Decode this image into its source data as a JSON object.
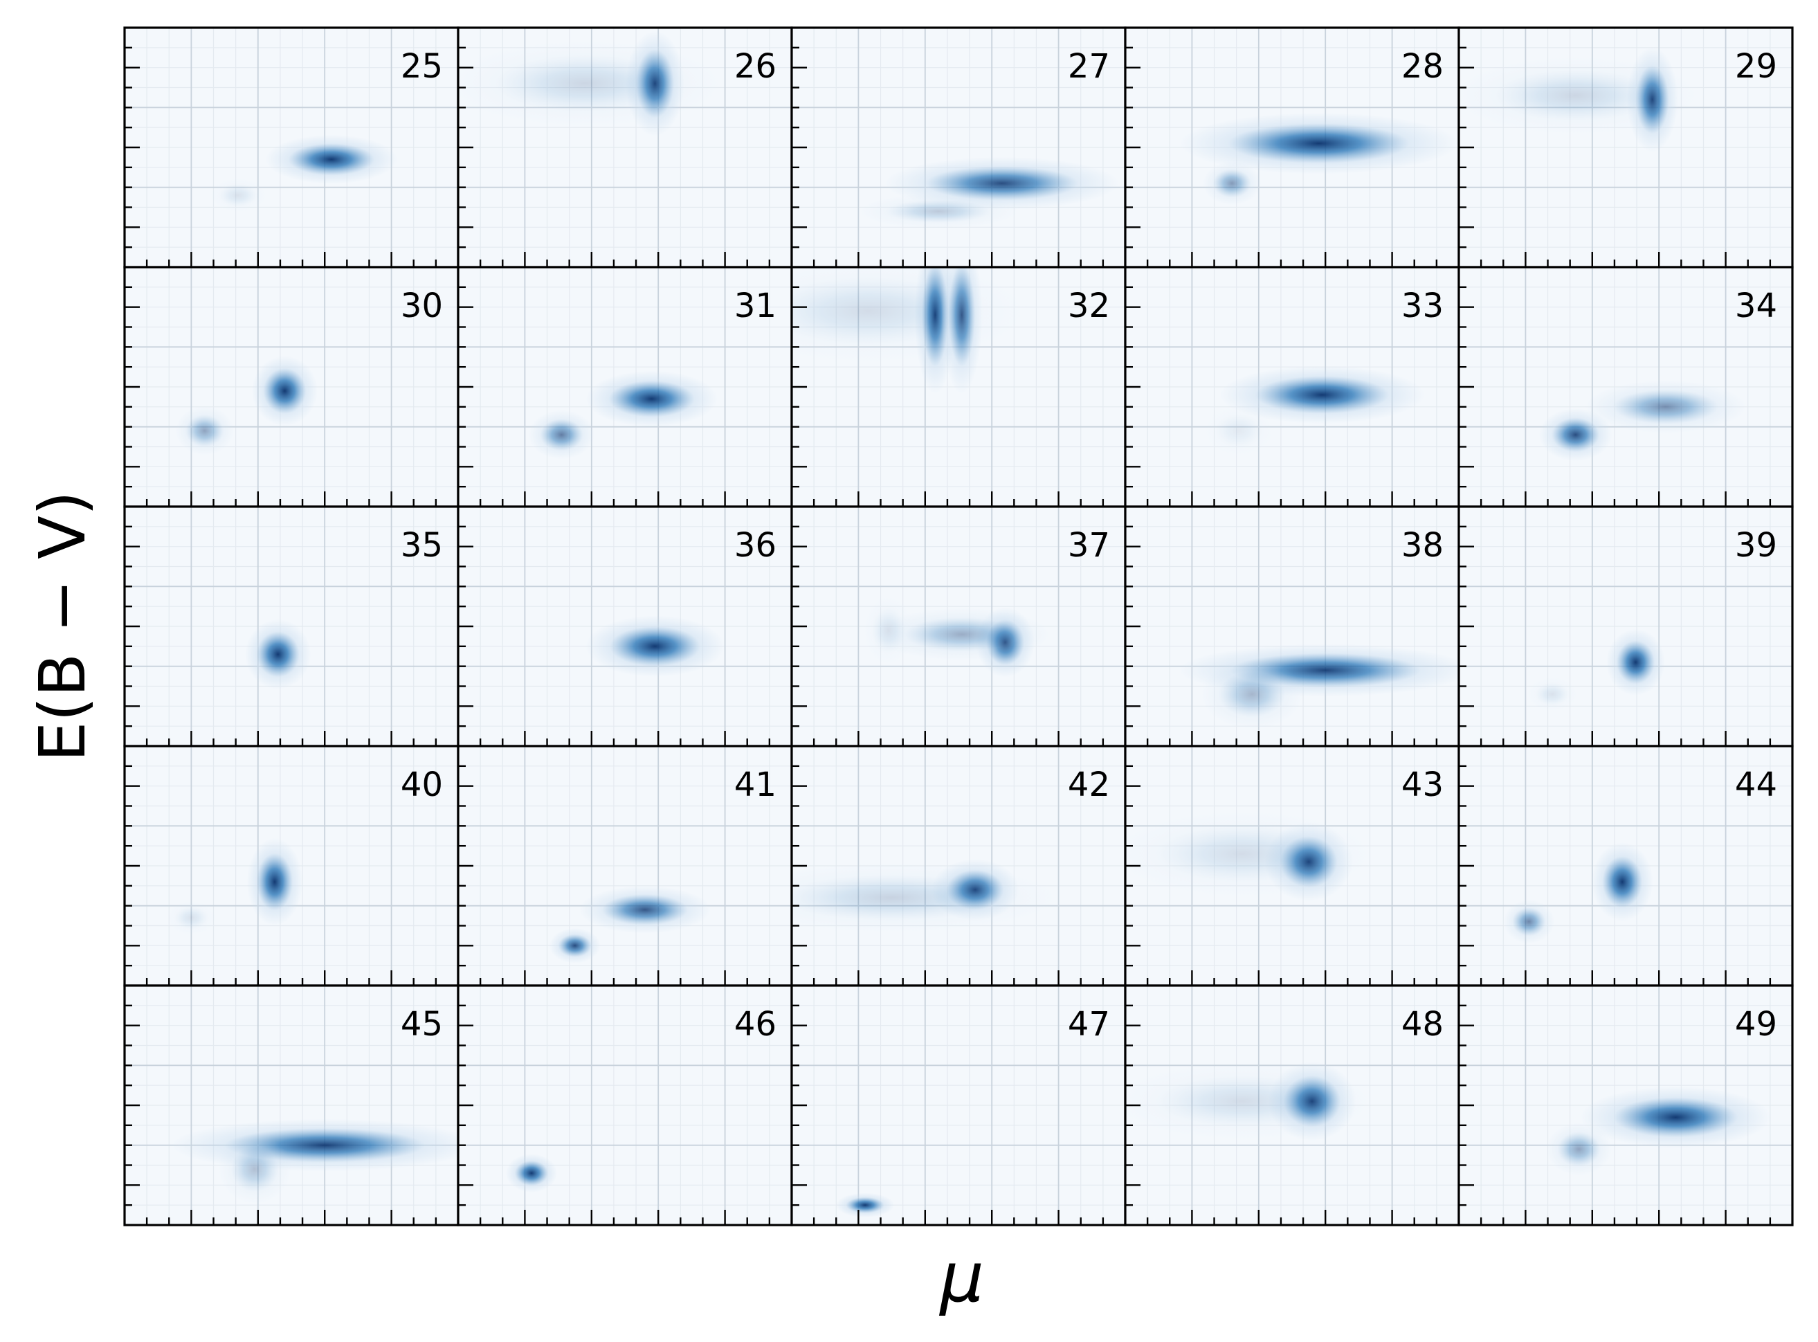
{
  "figure": {
    "xlabel": "μ",
    "ylabel": "E(B − V)",
    "colors": {
      "axis": "#000000",
      "grid": "#c8d2dc",
      "background": "#f4f8fc",
      "cmap_dark": "#08306b",
      "cmap_mid": "#2171b5",
      "cmap_light": "#c6dbef"
    }
  },
  "chart_data": {
    "type": "heatmap",
    "layout": {
      "rows": 5,
      "cols": 5
    },
    "xlabel": "μ",
    "ylabel": "E(B − V)",
    "grid": true,
    "colormap": "Blues",
    "tick_labels_shown": false,
    "panel_axes": {
      "x_range": [
        0,
        10
      ],
      "y_range": [
        0,
        6
      ]
    },
    "panels": [
      {
        "label": "25",
        "blobs": [
          {
            "x": 6.2,
            "y": 2.7,
            "sx": 0.9,
            "sy": 0.28,
            "w": 1
          },
          {
            "x": 3.4,
            "y": 1.8,
            "sx": 0.4,
            "sy": 0.2,
            "w": 0.12
          }
        ]
      },
      {
        "label": "26",
        "blobs": [
          {
            "x": 5.9,
            "y": 4.6,
            "sx": 0.4,
            "sy": 0.6,
            "w": 1
          },
          {
            "x": 3.8,
            "y": 4.6,
            "sx": 1.9,
            "sy": 0.5,
            "w": 0.18
          }
        ]
      },
      {
        "label": "27",
        "blobs": [
          {
            "x": 6.3,
            "y": 2.1,
            "sx": 1.6,
            "sy": 0.3,
            "w": 0.9
          },
          {
            "x": 4.4,
            "y": 1.4,
            "sx": 1.1,
            "sy": 0.2,
            "w": 0.25
          }
        ]
      },
      {
        "label": "28",
        "blobs": [
          {
            "x": 5.8,
            "y": 3.1,
            "sx": 1.9,
            "sy": 0.35,
            "w": 1
          },
          {
            "x": 3.2,
            "y": 2.1,
            "sx": 0.4,
            "sy": 0.25,
            "w": 0.5
          }
        ]
      },
      {
        "label": "29",
        "blobs": [
          {
            "x": 5.8,
            "y": 4.2,
            "sx": 0.35,
            "sy": 0.6,
            "w": 1
          },
          {
            "x": 3.5,
            "y": 4.3,
            "sx": 1.7,
            "sy": 0.45,
            "w": 0.18
          }
        ]
      },
      {
        "label": "30",
        "blobs": [
          {
            "x": 4.8,
            "y": 2.9,
            "sx": 0.45,
            "sy": 0.4,
            "w": 1
          },
          {
            "x": 2.4,
            "y": 1.9,
            "sx": 0.4,
            "sy": 0.28,
            "w": 0.45
          }
        ]
      },
      {
        "label": "31",
        "blobs": [
          {
            "x": 5.8,
            "y": 2.7,
            "sx": 0.9,
            "sy": 0.32,
            "w": 1
          },
          {
            "x": 3.1,
            "y": 1.8,
            "sx": 0.45,
            "sy": 0.28,
            "w": 0.65
          }
        ]
      },
      {
        "label": "32",
        "blobs": [
          {
            "x": 4.3,
            "y": 4.8,
            "sx": 0.28,
            "sy": 0.9,
            "w": 1
          },
          {
            "x": 5.1,
            "y": 4.8,
            "sx": 0.28,
            "sy": 0.9,
            "w": 0.9
          },
          {
            "x": 2.3,
            "y": 4.9,
            "sx": 2.2,
            "sy": 0.6,
            "w": 0.15
          }
        ]
      },
      {
        "label": "33",
        "blobs": [
          {
            "x": 5.9,
            "y": 2.8,
            "sx": 1.4,
            "sy": 0.33,
            "w": 1
          },
          {
            "x": 3.4,
            "y": 1.9,
            "sx": 0.5,
            "sy": 0.3,
            "w": 0.08
          }
        ]
      },
      {
        "label": "34",
        "blobs": [
          {
            "x": 6.2,
            "y": 2.5,
            "sx": 1.1,
            "sy": 0.3,
            "w": 0.55
          },
          {
            "x": 3.5,
            "y": 1.8,
            "sx": 0.5,
            "sy": 0.3,
            "w": 0.9
          }
        ]
      },
      {
        "label": "35",
        "blobs": [
          {
            "x": 4.6,
            "y": 2.3,
            "sx": 0.45,
            "sy": 0.4,
            "w": 1
          }
        ]
      },
      {
        "label": "36",
        "blobs": [
          {
            "x": 5.9,
            "y": 2.5,
            "sx": 0.95,
            "sy": 0.35,
            "w": 1
          }
        ]
      },
      {
        "label": "37",
        "blobs": [
          {
            "x": 6.4,
            "y": 2.6,
            "sx": 0.4,
            "sy": 0.4,
            "w": 1
          },
          {
            "x": 5.1,
            "y": 2.8,
            "sx": 1.2,
            "sy": 0.3,
            "w": 0.4
          },
          {
            "x": 2.9,
            "y": 2.9,
            "sx": 0.35,
            "sy": 0.4,
            "w": 0.12
          }
        ]
      },
      {
        "label": "38",
        "blobs": [
          {
            "x": 6.0,
            "y": 1.9,
            "sx": 2.0,
            "sy": 0.3,
            "w": 0.95
          },
          {
            "x": 3.8,
            "y": 1.3,
            "sx": 0.7,
            "sy": 0.4,
            "w": 0.35
          }
        ]
      },
      {
        "label": "39",
        "blobs": [
          {
            "x": 5.3,
            "y": 2.1,
            "sx": 0.4,
            "sy": 0.38,
            "w": 1
          },
          {
            "x": 2.8,
            "y": 1.3,
            "sx": 0.35,
            "sy": 0.2,
            "w": 0.12
          }
        ]
      },
      {
        "label": "40",
        "blobs": [
          {
            "x": 4.5,
            "y": 2.6,
            "sx": 0.38,
            "sy": 0.5,
            "w": 1
          },
          {
            "x": 2.0,
            "y": 1.7,
            "sx": 0.35,
            "sy": 0.2,
            "w": 0.12
          }
        ]
      },
      {
        "label": "41",
        "blobs": [
          {
            "x": 5.6,
            "y": 1.9,
            "sx": 0.9,
            "sy": 0.27,
            "w": 0.85
          },
          {
            "x": 3.5,
            "y": 1.0,
            "sx": 0.35,
            "sy": 0.2,
            "w": 0.9
          }
        ]
      },
      {
        "label": "42",
        "blobs": [
          {
            "x": 5.5,
            "y": 2.4,
            "sx": 0.6,
            "sy": 0.35,
            "w": 1
          },
          {
            "x": 3.0,
            "y": 2.2,
            "sx": 2.3,
            "sy": 0.4,
            "w": 0.2
          }
        ]
      },
      {
        "label": "43",
        "blobs": [
          {
            "x": 5.5,
            "y": 3.1,
            "sx": 0.6,
            "sy": 0.45,
            "w": 1
          },
          {
            "x": 3.5,
            "y": 3.3,
            "sx": 1.8,
            "sy": 0.5,
            "w": 0.15
          }
        ]
      },
      {
        "label": "44",
        "blobs": [
          {
            "x": 4.9,
            "y": 2.6,
            "sx": 0.42,
            "sy": 0.45,
            "w": 1
          },
          {
            "x": 2.1,
            "y": 1.6,
            "sx": 0.35,
            "sy": 0.25,
            "w": 0.6
          }
        ]
      },
      {
        "label": "45",
        "blobs": [
          {
            "x": 6.0,
            "y": 2.0,
            "sx": 2.1,
            "sy": 0.3,
            "w": 0.95
          },
          {
            "x": 3.9,
            "y": 1.4,
            "sx": 0.5,
            "sy": 0.4,
            "w": 0.3
          }
        ]
      },
      {
        "label": "46",
        "blobs": [
          {
            "x": 2.2,
            "y": 1.3,
            "sx": 0.35,
            "sy": 0.22,
            "w": 1
          }
        ]
      },
      {
        "label": "47",
        "blobs": [
          {
            "x": 2.2,
            "y": 0.5,
            "sx": 0.4,
            "sy": 0.14,
            "w": 1
          }
        ]
      },
      {
        "label": "48",
        "blobs": [
          {
            "x": 5.6,
            "y": 3.1,
            "sx": 0.6,
            "sy": 0.45,
            "w": 1
          },
          {
            "x": 3.5,
            "y": 3.1,
            "sx": 1.8,
            "sy": 0.45,
            "w": 0.15
          }
        ]
      },
      {
        "label": "49",
        "blobs": [
          {
            "x": 6.5,
            "y": 2.7,
            "sx": 1.3,
            "sy": 0.35,
            "w": 1
          },
          {
            "x": 3.6,
            "y": 1.9,
            "sx": 0.45,
            "sy": 0.3,
            "w": 0.45
          }
        ]
      }
    ]
  }
}
